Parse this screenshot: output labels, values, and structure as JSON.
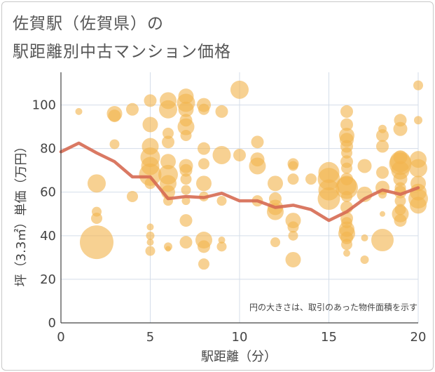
{
  "title_line1": "佐賀駅（佐賀県）の",
  "title_line2": "駅距離別中古マンション価格",
  "chart_data": {
    "type": "scatter",
    "xlabel": "駅距離（分）",
    "ylabel": "坪（3.3㎡）単価（万円）",
    "xlim": [
      0,
      20
    ],
    "ylim": [
      0,
      115
    ],
    "x_ticks": [
      0,
      5,
      10,
      15,
      20
    ],
    "y_ticks": [
      0,
      20,
      40,
      60,
      80,
      100
    ],
    "grid": true,
    "note": "円の大きさは、取引のあった物件面積を示す",
    "bubble_color": "#f2b44f",
    "line_color": "#d66a52",
    "bubbles": [
      {
        "x": 1,
        "y": 97,
        "s": 5
      },
      {
        "x": 2,
        "y": 37,
        "s": 24
      },
      {
        "x": 2,
        "y": 64,
        "s": 13
      },
      {
        "x": 2,
        "y": 51,
        "s": 7
      },
      {
        "x": 2,
        "y": 48,
        "s": 8
      },
      {
        "x": 3,
        "y": 96,
        "s": 11
      },
      {
        "x": 3,
        "y": 95,
        "s": 9
      },
      {
        "x": 3,
        "y": 82,
        "s": 7
      },
      {
        "x": 4,
        "y": 98,
        "s": 9
      },
      {
        "x": 4,
        "y": 58,
        "s": 8
      },
      {
        "x": 5,
        "y": 102,
        "s": 9
      },
      {
        "x": 5,
        "y": 91,
        "s": 11
      },
      {
        "x": 5,
        "y": 81,
        "s": 12
      },
      {
        "x": 5,
        "y": 76,
        "s": 14
      },
      {
        "x": 5,
        "y": 72,
        "s": 13
      },
      {
        "x": 5,
        "y": 68,
        "s": 16
      },
      {
        "x": 5,
        "y": 64,
        "s": 8
      },
      {
        "x": 5,
        "y": 44,
        "s": 5
      },
      {
        "x": 5,
        "y": 40,
        "s": 6
      },
      {
        "x": 5,
        "y": 37,
        "s": 5
      },
      {
        "x": 5,
        "y": 33,
        "s": 7
      },
      {
        "x": 6,
        "y": 102,
        "s": 12
      },
      {
        "x": 6,
        "y": 98,
        "s": 13
      },
      {
        "x": 6,
        "y": 87,
        "s": 8
      },
      {
        "x": 6,
        "y": 83,
        "s": 9
      },
      {
        "x": 6,
        "y": 74,
        "s": 11
      },
      {
        "x": 6,
        "y": 68,
        "s": 14
      },
      {
        "x": 6,
        "y": 64,
        "s": 12
      },
      {
        "x": 6,
        "y": 60,
        "s": 10
      },
      {
        "x": 6,
        "y": 56,
        "s": 7
      },
      {
        "x": 6,
        "y": 35,
        "s": 6
      },
      {
        "x": 6,
        "y": 34,
        "s": 4
      },
      {
        "x": 7,
        "y": 104,
        "s": 11
      },
      {
        "x": 7,
        "y": 101,
        "s": 13
      },
      {
        "x": 7,
        "y": 98,
        "s": 11
      },
      {
        "x": 7,
        "y": 93,
        "s": 9
      },
      {
        "x": 7,
        "y": 90,
        "s": 12
      },
      {
        "x": 7,
        "y": 86,
        "s": 8
      },
      {
        "x": 7,
        "y": 72,
        "s": 10
      },
      {
        "x": 7,
        "y": 70,
        "s": 9
      },
      {
        "x": 7,
        "y": 66,
        "s": 8
      },
      {
        "x": 7,
        "y": 61,
        "s": 7
      },
      {
        "x": 7,
        "y": 56,
        "s": 6
      },
      {
        "x": 7,
        "y": 47,
        "s": 9
      },
      {
        "x": 7,
        "y": 37,
        "s": 9
      },
      {
        "x": 8,
        "y": 100,
        "s": 10
      },
      {
        "x": 8,
        "y": 98,
        "s": 8
      },
      {
        "x": 8,
        "y": 80,
        "s": 9
      },
      {
        "x": 8,
        "y": 73,
        "s": 8
      },
      {
        "x": 8,
        "y": 64,
        "s": 11
      },
      {
        "x": 8,
        "y": 58,
        "s": 7
      },
      {
        "x": 8,
        "y": 38,
        "s": 12
      },
      {
        "x": 8,
        "y": 35,
        "s": 9
      },
      {
        "x": 8,
        "y": 27,
        "s": 8
      },
      {
        "x": 9,
        "y": 97,
        "s": 9
      },
      {
        "x": 9,
        "y": 77,
        "s": 13
      },
      {
        "x": 9,
        "y": 56,
        "s": 7
      },
      {
        "x": 9,
        "y": 38,
        "s": 5
      },
      {
        "x": 9,
        "y": 35,
        "s": 7
      },
      {
        "x": 10,
        "y": 107,
        "s": 13
      },
      {
        "x": 10,
        "y": 77,
        "s": 9
      },
      {
        "x": 11,
        "y": 83,
        "s": 9
      },
      {
        "x": 11,
        "y": 75,
        "s": 10
      },
      {
        "x": 11,
        "y": 72,
        "s": 12
      },
      {
        "x": 11,
        "y": 56,
        "s": 8
      },
      {
        "x": 12,
        "y": 64,
        "s": 11
      },
      {
        "x": 12,
        "y": 57,
        "s": 9
      },
      {
        "x": 12,
        "y": 53,
        "s": 11
      },
      {
        "x": 12,
        "y": 51,
        "s": 12
      },
      {
        "x": 12,
        "y": 37,
        "s": 7
      },
      {
        "x": 13,
        "y": 73,
        "s": 8
      },
      {
        "x": 13,
        "y": 72,
        "s": 7
      },
      {
        "x": 13,
        "y": 66,
        "s": 8
      },
      {
        "x": 13,
        "y": 47,
        "s": 11
      },
      {
        "x": 13,
        "y": 44,
        "s": 8
      },
      {
        "x": 13,
        "y": 40,
        "s": 7
      },
      {
        "x": 13,
        "y": 29,
        "s": 11
      },
      {
        "x": 14,
        "y": 66,
        "s": 8
      },
      {
        "x": 15,
        "y": 69,
        "s": 15
      },
      {
        "x": 15,
        "y": 66,
        "s": 16
      },
      {
        "x": 15,
        "y": 61,
        "s": 15
      },
      {
        "x": 15,
        "y": 57,
        "s": 16
      },
      {
        "x": 16,
        "y": 97,
        "s": 9
      },
      {
        "x": 16,
        "y": 91,
        "s": 9
      },
      {
        "x": 16,
        "y": 86,
        "s": 11
      },
      {
        "x": 16,
        "y": 84,
        "s": 10
      },
      {
        "x": 16,
        "y": 81,
        "s": 9
      },
      {
        "x": 16,
        "y": 78,
        "s": 8
      },
      {
        "x": 16,
        "y": 74,
        "s": 9
      },
      {
        "x": 16,
        "y": 71,
        "s": 8
      },
      {
        "x": 16,
        "y": 66,
        "s": 9
      },
      {
        "x": 16,
        "y": 63,
        "s": 14
      },
      {
        "x": 16,
        "y": 62,
        "s": 16
      },
      {
        "x": 16,
        "y": 58,
        "s": 8
      },
      {
        "x": 16,
        "y": 53,
        "s": 9
      },
      {
        "x": 16,
        "y": 48,
        "s": 9
      },
      {
        "x": 16,
        "y": 46,
        "s": 8
      },
      {
        "x": 16,
        "y": 43,
        "s": 11
      },
      {
        "x": 16,
        "y": 41,
        "s": 12
      },
      {
        "x": 16,
        "y": 39,
        "s": 9
      },
      {
        "x": 16,
        "y": 36,
        "s": 8
      },
      {
        "x": 16,
        "y": 32,
        "s": 5
      },
      {
        "x": 17,
        "y": 72,
        "s": 10
      },
      {
        "x": 17,
        "y": 59,
        "s": 11
      },
      {
        "x": 17,
        "y": 39,
        "s": 5
      },
      {
        "x": 17,
        "y": 29,
        "s": 6
      },
      {
        "x": 18,
        "y": 89,
        "s": 6
      },
      {
        "x": 18,
        "y": 86,
        "s": 9
      },
      {
        "x": 18,
        "y": 81,
        "s": 9
      },
      {
        "x": 18,
        "y": 69,
        "s": 9
      },
      {
        "x": 18,
        "y": 62,
        "s": 10
      },
      {
        "x": 18,
        "y": 59,
        "s": 6
      },
      {
        "x": 18,
        "y": 50,
        "s": 4
      },
      {
        "x": 18,
        "y": 38,
        "s": 16
      },
      {
        "x": 19,
        "y": 93,
        "s": 9
      },
      {
        "x": 19,
        "y": 89,
        "s": 10
      },
      {
        "x": 19,
        "y": 76,
        "s": 10
      },
      {
        "x": 19,
        "y": 74,
        "s": 15
      },
      {
        "x": 19,
        "y": 73,
        "s": 16
      },
      {
        "x": 19,
        "y": 70,
        "s": 13
      },
      {
        "x": 19,
        "y": 66,
        "s": 10
      },
      {
        "x": 19,
        "y": 62,
        "s": 8
      },
      {
        "x": 19,
        "y": 60,
        "s": 9
      },
      {
        "x": 19,
        "y": 56,
        "s": 8
      },
      {
        "x": 19,
        "y": 52,
        "s": 8
      },
      {
        "x": 19,
        "y": 50,
        "s": 12
      },
      {
        "x": 19,
        "y": 47,
        "s": 9
      },
      {
        "x": 20,
        "y": 109,
        "s": 7
      },
      {
        "x": 20,
        "y": 93,
        "s": 6
      },
      {
        "x": 20,
        "y": 75,
        "s": 12
      },
      {
        "x": 20,
        "y": 71,
        "s": 13
      },
      {
        "x": 20,
        "y": 64,
        "s": 11
      },
      {
        "x": 20,
        "y": 60,
        "s": 12
      },
      {
        "x": 20,
        "y": 57,
        "s": 14
      },
      {
        "x": 20,
        "y": 54,
        "s": 12
      }
    ],
    "trend": {
      "x": [
        0,
        1,
        2,
        3,
        4,
        5,
        6,
        7,
        8,
        9,
        10,
        11,
        12,
        13,
        14,
        15,
        16,
        17,
        18,
        19,
        20
      ],
      "y": [
        78.5,
        82.5,
        78,
        74,
        67,
        67,
        57,
        58,
        57.5,
        59.5,
        56,
        56,
        53,
        54,
        52,
        47,
        51,
        57,
        61,
        59,
        62
      ]
    }
  }
}
